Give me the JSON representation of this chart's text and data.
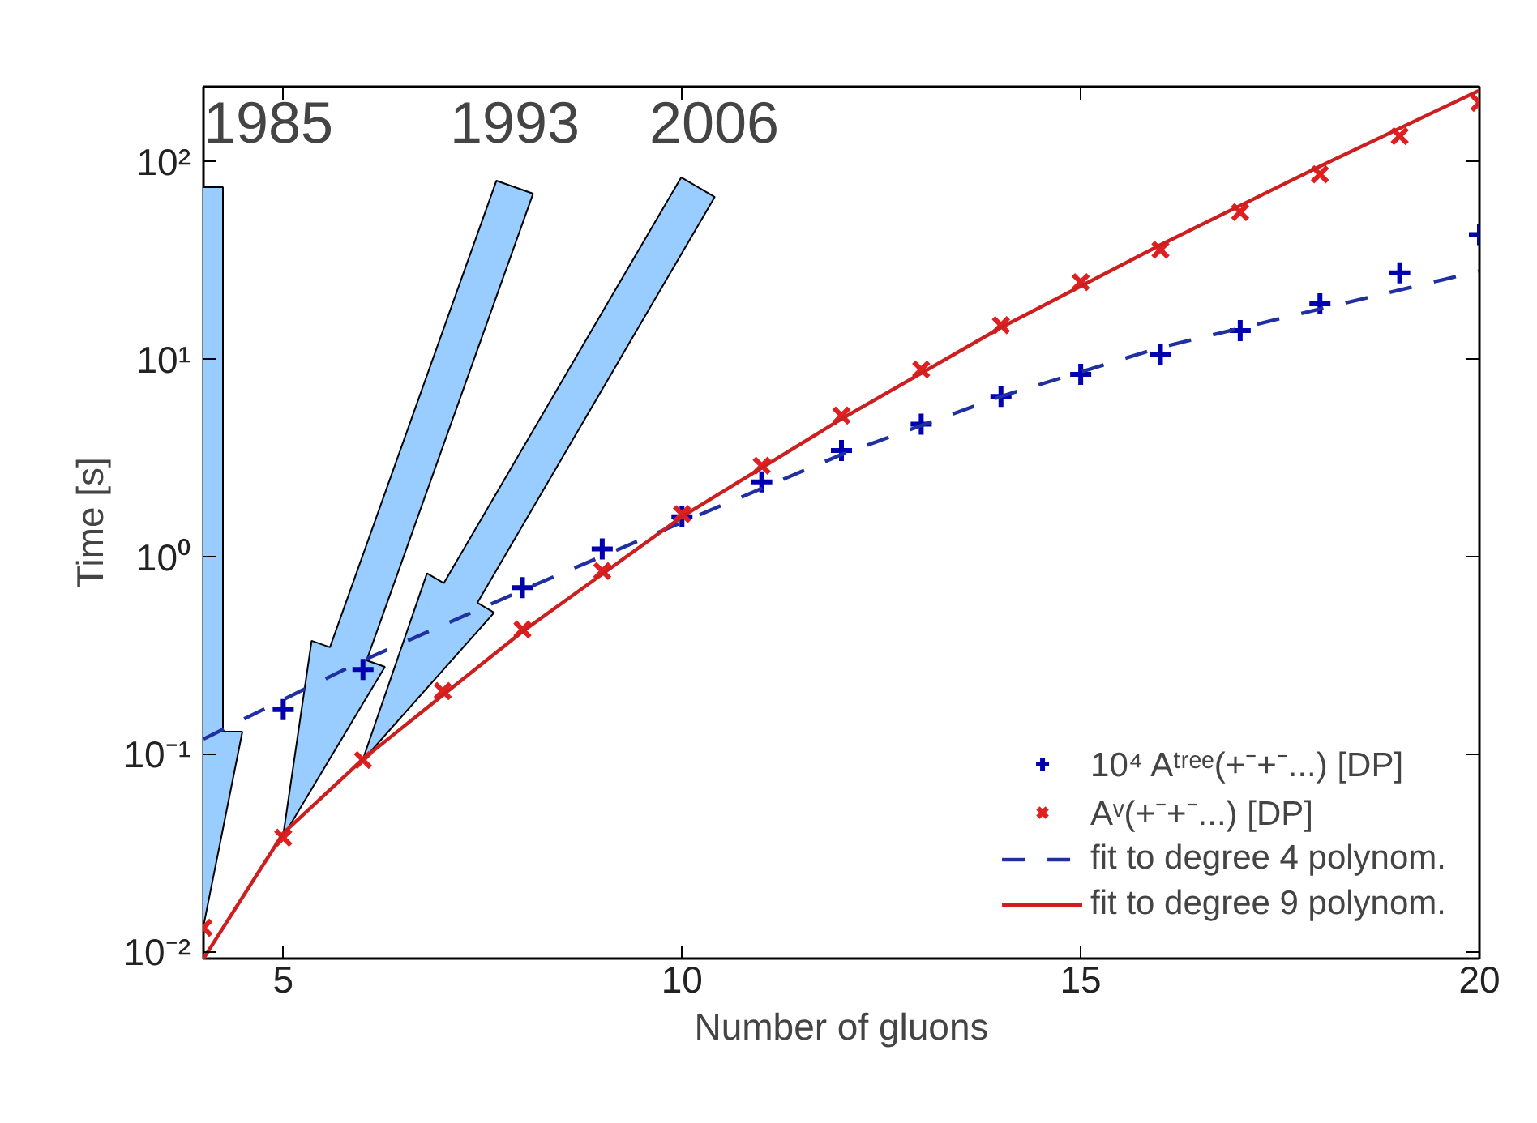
{
  "chart_data": {
    "type": "scatter",
    "xlabel": "Number of gluons",
    "ylabel": "Time [s]",
    "log": "y",
    "grid": false,
    "legend": "bottom right",
    "xlim": [
      4,
      20
    ],
    "xticks": [
      5,
      10,
      15,
      20
    ],
    "ylim": [
      0.0093,
      240
    ],
    "yticks": [
      {
        "value": 0.01,
        "label": "10⁻²"
      },
      {
        "value": 0.1,
        "label": "10⁻¹"
      },
      {
        "value": 1,
        "label": "10⁰"
      },
      {
        "value": 10,
        "label": "10¹"
      },
      {
        "value": 100,
        "label": "10²"
      }
    ],
    "x": [
      4,
      5,
      6,
      7,
      8,
      9,
      10,
      11,
      12,
      13,
      14,
      15,
      16,
      17,
      18,
      19,
      20
    ],
    "series": [
      {
        "name": "10⁴ Aᵗʳᵉᵉ(+⁻+⁻...) [DP]",
        "marker": "cross",
        "color": "#0000b0",
        "values": [
          null,
          0.169,
          0.27,
          null,
          0.7,
          1.1,
          1.6,
          2.4,
          3.46,
          4.7,
          6.5,
          8.4,
          10.6,
          14.0,
          19.1,
          27.4,
          42.8
        ]
      },
      {
        "name": "Aᵛ(+⁻+⁻...) [DP]",
        "marker": "x",
        "color": "#e02020",
        "values": [
          0.0133,
          0.038,
          0.094,
          0.21,
          0.43,
          0.85,
          1.65,
          2.9,
          5.2,
          8.9,
          14.9,
          24.6,
          35.9,
          55.7,
          86.5,
          135,
          199
        ]
      },
      {
        "name": "fit to degree 4 polynom.",
        "type": "line",
        "line_style": "dashed",
        "marker": "none",
        "color": "#2030a0",
        "x": [
          4,
          5,
          6,
          8,
          10,
          12,
          14,
          16,
          18,
          20
        ],
        "values": [
          0.12,
          0.19,
          0.3,
          0.68,
          1.5,
          3.3,
          6.5,
          11.5,
          18,
          28
        ]
      },
      {
        "name": "fit to degree 9 polynom.",
        "type": "line",
        "line_style": "solid",
        "marker": "none",
        "color": "#cc2020",
        "x": [
          4,
          5,
          6,
          7,
          8,
          10,
          12,
          14,
          16,
          18,
          20
        ],
        "values": [
          0.0093,
          0.04,
          0.095,
          0.2,
          0.42,
          1.6,
          5.0,
          14.5,
          38,
          95,
          230
        ]
      }
    ],
    "annotations": [
      "1985",
      "1993",
      "2006"
    ]
  }
}
